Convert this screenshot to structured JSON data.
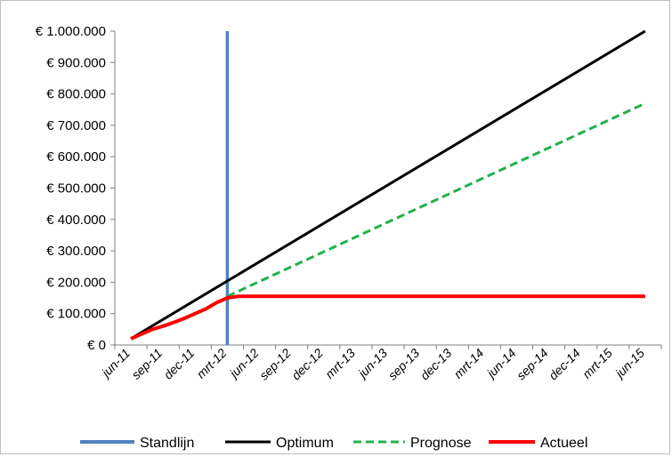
{
  "chart_data": {
    "type": "line",
    "title": "",
    "xlabel": "",
    "ylabel": "",
    "x_tick_labels": [
      "jun-11",
      "sep-11",
      "dec-11",
      "mrt-12",
      "jun-12",
      "sep-12",
      "dec-12",
      "mrt-13",
      "jun-13",
      "sep-13",
      "dec-13",
      "mrt-14",
      "jun-14",
      "sep-14",
      "dec-14",
      "mrt-15",
      "jun-15"
    ],
    "y_tick_labels": [
      "€ 0",
      "€ 100.000",
      "€ 200.000",
      "€ 300.000",
      "€ 400.000",
      "€ 500.000",
      "€ 600.000",
      "€ 700.000",
      "€ 800.000",
      "€ 900.000",
      "€ 1.000.000"
    ],
    "ylim": [
      0,
      1000000
    ],
    "x_unit": "month",
    "grid": false,
    "legend_position": "bottom",
    "series": [
      {
        "name": "Standlijn",
        "color": "#4f81bd",
        "style": "solid",
        "kind": "vertical_line",
        "x": "mrt-12"
      },
      {
        "name": "Optimum",
        "color": "#000000",
        "style": "solid",
        "points": [
          {
            "x": "jun-11",
            "y": 20000
          },
          {
            "x": "jun-15",
            "y": 1000000
          }
        ]
      },
      {
        "name": "Prognose",
        "color": "#22b14c",
        "style": "dashed",
        "points": [
          {
            "x": "mrt-12",
            "y": 155000
          },
          {
            "x": "jun-15",
            "y": 770000
          }
        ]
      },
      {
        "name": "Actueel",
        "color": "#ff0000",
        "style": "solid",
        "points": [
          {
            "x": "jun-11",
            "y": 20000
          },
          {
            "x": "aug-11",
            "y": 50000
          },
          {
            "x": "sep-11",
            "y": 60000
          },
          {
            "x": "okt-11",
            "y": 72000
          },
          {
            "x": "nov-11",
            "y": 85000
          },
          {
            "x": "dec-11",
            "y": 100000
          },
          {
            "x": "jan-12",
            "y": 115000
          },
          {
            "x": "feb-12",
            "y": 135000
          },
          {
            "x": "mrt-12",
            "y": 150000
          },
          {
            "x": "apr-12",
            "y": 155000
          },
          {
            "x": "jun-15",
            "y": 155000
          }
        ]
      }
    ]
  }
}
